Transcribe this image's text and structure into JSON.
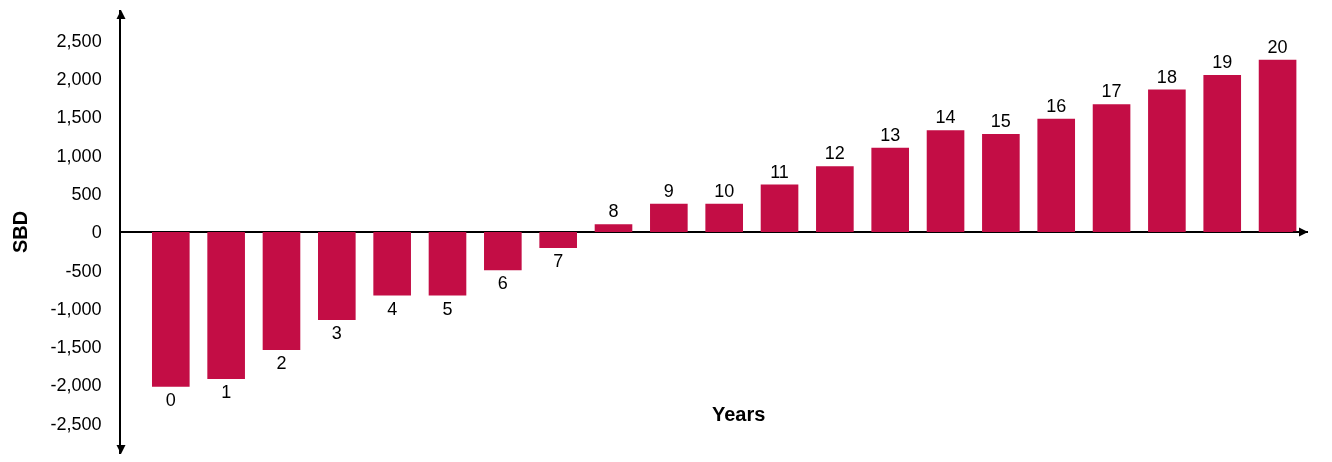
{
  "chart_data": {
    "type": "bar",
    "xlabel": "Years",
    "ylabel": "SBD",
    "categories": [
      "0",
      "1",
      "2",
      "3",
      "4",
      "5",
      "6",
      "7",
      "8",
      "9",
      "10",
      "11",
      "12",
      "13",
      "14",
      "15",
      "16",
      "17",
      "18",
      "19",
      "20"
    ],
    "values": [
      -2020,
      -1920,
      -1540,
      -1150,
      -830,
      -830,
      -500,
      -210,
      100,
      370,
      370,
      620,
      860,
      1100,
      1330,
      1280,
      1480,
      1670,
      1860,
      2050,
      2250
    ],
    "color": "#c30d45",
    "ylim": [
      -2900,
      2900
    ],
    "yticks": [
      {
        "value": -2500,
        "label": "-2,500"
      },
      {
        "value": -2000,
        "label": "-2,000"
      },
      {
        "value": -1500,
        "label": "-1,500"
      },
      {
        "value": -1000,
        "label": "-1,000"
      },
      {
        "value": -500,
        "label": "-500"
      },
      0,
      500,
      {
        "value": 1000,
        "label": "1,000"
      },
      {
        "value": 1500,
        "label": "1,500"
      },
      {
        "value": 2000,
        "label": "2,000"
      },
      {
        "value": 2500,
        "label": "2,500"
      }
    ],
    "legend": false
  }
}
